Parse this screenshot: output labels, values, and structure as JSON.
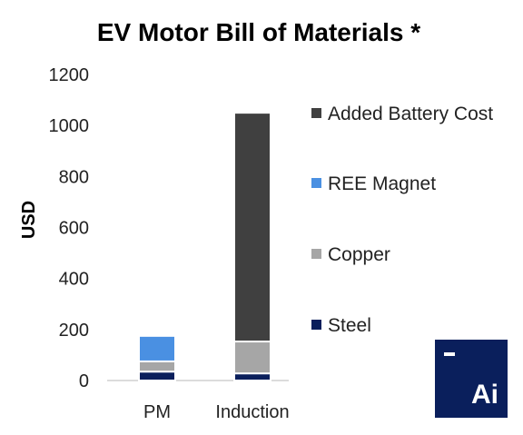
{
  "chart_data": {
    "type": "bar",
    "stacked": true,
    "title": "EV Motor Bill of Materials *",
    "ylabel": "USD",
    "xlabel": "",
    "ylim": [
      0,
      1200
    ],
    "yticks": [
      0,
      200,
      400,
      600,
      800,
      1000,
      1200
    ],
    "grid": false,
    "legend_position": "right",
    "categories": [
      "PM",
      "Induction"
    ],
    "series": [
      {
        "name": "Steel",
        "values": [
          35,
          28
        ],
        "color": "#0a1f5c"
      },
      {
        "name": "Copper",
        "values": [
          40,
          125
        ],
        "color": "#a6a6a6"
      },
      {
        "name": "REE Magnet",
        "values": [
          100,
          0
        ],
        "color": "#4a90e2"
      },
      {
        "name": "Added Battery Cost",
        "values": [
          0,
          897
        ],
        "color": "#404040"
      }
    ],
    "legend_order": [
      "Added Battery Cost",
      "REE Magnet",
      "Copper",
      "Steel"
    ]
  },
  "logo": {
    "text": "Ai",
    "icon": "brand-logo-icon"
  }
}
